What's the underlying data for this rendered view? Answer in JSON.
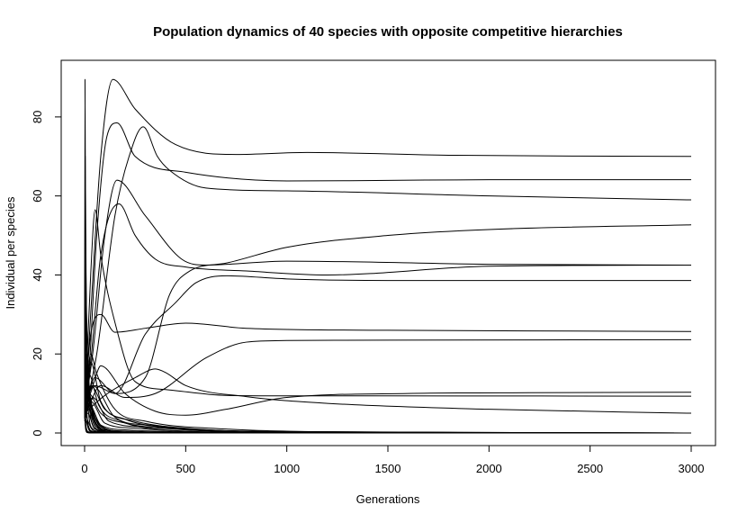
{
  "chart_data": {
    "type": "line",
    "title": "Population dynamics of 40 species with opposite competitive hierarchies",
    "xlabel": "Generations",
    "ylabel": "Individual per species",
    "xlim": [
      0,
      3000
    ],
    "ylim": [
      0,
      90
    ],
    "xticks": [
      0,
      500,
      1000,
      1500,
      2000,
      2500,
      3000
    ],
    "yticks": [
      0,
      20,
      40,
      60,
      80
    ],
    "grid": false,
    "line_color": "#000000",
    "series": [
      {
        "x": [
          0,
          30,
          80,
          140,
          250,
          450,
          750,
          1100,
          1800,
          3000
        ],
        "y": [
          4,
          30,
          70,
          89.5,
          82,
          73,
          70.5,
          71,
          70.3,
          70
        ]
      },
      {
        "x": [
          0,
          20,
          60,
          110,
          160,
          250,
          500,
          1000,
          2000,
          3000
        ],
        "y": [
          4,
          14,
          50,
          75,
          78.5,
          70,
          66,
          63.8,
          64.1,
          64.1
        ]
      },
      {
        "x": [
          0,
          60,
          150,
          220,
          290,
          360,
          420,
          600,
          1000,
          2000,
          3000
        ],
        "y": [
          5,
          20,
          55,
          70,
          77.5,
          70,
          66.5,
          62,
          61.3,
          60,
          59
        ]
      },
      {
        "x": [
          0,
          40,
          100,
          160,
          300,
          480,
          600,
          1000,
          2000,
          3000
        ],
        "y": [
          6,
          20,
          50,
          64,
          55,
          44,
          42.5,
          43.5,
          42.7,
          42.5
        ]
      },
      {
        "x": [
          0,
          30,
          80,
          170,
          250,
          350,
          500,
          800,
          1200,
          2000,
          3000
        ],
        "y": [
          5,
          18,
          45,
          58,
          50,
          44,
          42,
          41,
          40,
          42.2,
          42.5
        ]
      },
      {
        "x": [
          0,
          30,
          52,
          80,
          150,
          250,
          400,
          700,
          1000,
          1500,
          3000
        ],
        "y": [
          4,
          40,
          56.5,
          45,
          28,
          13,
          11,
          9.5,
          9.4,
          9.4,
          9.3
        ]
      },
      {
        "x": [
          0,
          50,
          150,
          300,
          420,
          520,
          700,
          1000,
          1500,
          2000,
          3000
        ],
        "y": [
          5,
          12,
          10,
          14,
          35,
          41,
          43,
          47,
          50,
          51.5,
          52.7
        ]
      },
      {
        "x": [
          0,
          50,
          150,
          300,
          450,
          550,
          700,
          1000,
          1500,
          3000
        ],
        "y": [
          5,
          14,
          10,
          25,
          33,
          38,
          39.8,
          39,
          38.6,
          38.6
        ]
      },
      {
        "x": [
          0,
          30,
          80,
          150,
          300,
          500,
          800,
          1500,
          3000
        ],
        "y": [
          6,
          25,
          30,
          25.5,
          26.5,
          27.8,
          26.5,
          26,
          25.7
        ]
      },
      {
        "x": [
          0,
          80,
          200,
          350,
          600,
          800,
          1000,
          1500,
          3000
        ],
        "y": [
          4,
          12,
          9,
          10,
          19,
          23,
          23.4,
          23.5,
          23.6
        ]
      },
      {
        "x": [
          0,
          100,
          250,
          350,
          400,
          500,
          800,
          1200,
          2000,
          3000
        ],
        "y": [
          5,
          9.5,
          14,
          16.2,
          15.3,
          12,
          9.2,
          7.5,
          6,
          5
        ]
      },
      {
        "x": [
          0,
          40,
          80,
          200,
          350,
          500,
          700,
          1000,
          1600,
          2200,
          3000
        ],
        "y": [
          8,
          12,
          17,
          10,
          5.5,
          4.5,
          6,
          9,
          10,
          10.2,
          10.3
        ]
      },
      {
        "x": [
          0,
          30,
          60,
          150,
          300,
          700,
          1200,
          3000
        ],
        "y": [
          4,
          20,
          15,
          6,
          3,
          1,
          0.3,
          0
        ]
      },
      {
        "x": [
          0,
          40,
          150,
          300,
          600,
          1000,
          3000
        ],
        "y": [
          5,
          12,
          4,
          2,
          0.8,
          0.2,
          0
        ]
      },
      {
        "x": [
          0,
          20,
          80,
          200,
          400,
          800,
          3000
        ],
        "y": [
          6,
          10,
          5,
          2.5,
          1.2,
          0.4,
          0
        ]
      },
      {
        "x": [
          0,
          40,
          120,
          300,
          600,
          1200,
          3000
        ],
        "y": [
          4,
          9,
          3,
          1.5,
          0.5,
          0.1,
          0
        ]
      },
      {
        "x": [
          0,
          30,
          100,
          250,
          500,
          900,
          3000
        ],
        "y": [
          5,
          8,
          2.5,
          1.2,
          0.4,
          0.1,
          0
        ]
      },
      {
        "x": [
          0,
          25,
          80,
          200,
          450,
          800,
          3000
        ],
        "y": [
          4,
          7,
          2,
          0.8,
          0.3,
          0.1,
          0
        ]
      },
      {
        "x": [
          0,
          20,
          60,
          150,
          400,
          700,
          3000
        ],
        "y": [
          5,
          6,
          1.5,
          0.6,
          0.2,
          0.05,
          0
        ]
      },
      {
        "x": [
          0,
          15,
          50,
          120,
          300,
          600,
          3000
        ],
        "y": [
          3,
          5,
          1,
          0.4,
          0.1,
          0,
          0
        ]
      },
      {
        "x": [
          0,
          10,
          40,
          100,
          250,
          500,
          3000
        ],
        "y": [
          6,
          4,
          0.8,
          0.3,
          0.1,
          0,
          0
        ]
      },
      {
        "x": [
          0,
          10,
          30,
          80,
          200,
          400,
          3000
        ],
        "y": [
          4,
          3,
          0.6,
          0.2,
          0.05,
          0,
          0
        ]
      },
      {
        "x": [
          0,
          8,
          25,
          60,
          150,
          300,
          3000
        ],
        "y": [
          5,
          3,
          0.5,
          0.1,
          0,
          0,
          0
        ]
      },
      {
        "x": [
          0,
          6,
          20,
          50,
          120,
          250,
          3000
        ],
        "y": [
          6,
          2,
          0.3,
          0.1,
          0,
          0,
          0
        ]
      },
      {
        "x": [
          0,
          5,
          15,
          40,
          100,
          200,
          3000
        ],
        "y": [
          4,
          1.5,
          0.2,
          0,
          0,
          0,
          0
        ]
      },
      {
        "x": [
          0,
          5,
          12,
          30,
          80,
          160,
          3000
        ],
        "y": [
          5,
          1,
          0.1,
          0,
          0,
          0,
          0
        ]
      },
      {
        "x": [
          0,
          30,
          100,
          250,
          500,
          1000,
          3000
        ],
        "y": [
          6,
          12,
          6,
          3,
          1.2,
          0.3,
          0
        ]
      },
      {
        "x": [
          0,
          30,
          80,
          200,
          400,
          900,
          3000
        ],
        "y": [
          5,
          18,
          8,
          3.5,
          1.5,
          0.4,
          0
        ]
      },
      {
        "x": [
          0,
          20,
          70,
          180,
          350,
          800,
          3000
        ],
        "y": [
          4,
          15,
          7,
          3,
          1,
          0.2,
          0
        ]
      },
      {
        "x": [
          0,
          2,
          4,
          6,
          15,
          30,
          60,
          3000
        ],
        "y": [
          5,
          89.5,
          60,
          20,
          3,
          0.5,
          0,
          0
        ]
      },
      {
        "x": [
          0,
          3,
          6,
          10,
          20,
          40,
          80,
          3000
        ],
        "y": [
          4,
          70,
          50,
          22,
          5,
          1,
          0.1,
          0
        ]
      },
      {
        "x": [
          0,
          3,
          8,
          15,
          30,
          60,
          120,
          3000
        ],
        "y": [
          6,
          55,
          35,
          15,
          4,
          0.8,
          0.1,
          0
        ]
      },
      {
        "x": [
          0,
          4,
          10,
          20,
          40,
          80,
          160,
          3000
        ],
        "y": [
          5,
          40,
          28,
          12,
          3,
          0.5,
          0,
          0
        ]
      },
      {
        "x": [
          0,
          5,
          12,
          25,
          50,
          100,
          200,
          3000
        ],
        "y": [
          4,
          30,
          22,
          10,
          2.5,
          0.4,
          0,
          0
        ]
      },
      {
        "x": [
          0,
          5,
          14,
          30,
          60,
          120,
          250,
          3000
        ],
        "y": [
          6,
          24,
          18,
          8,
          2,
          0.3,
          0,
          0
        ]
      },
      {
        "x": [
          0,
          6,
          16,
          35,
          70,
          140,
          300,
          3000
        ],
        "y": [
          5,
          20,
          14,
          6,
          1.5,
          0.2,
          0,
          0
        ]
      },
      {
        "x": [
          0,
          8,
          20,
          40,
          80,
          160,
          350,
          3000
        ],
        "y": [
          4,
          17,
          12,
          5,
          1.2,
          0.2,
          0,
          0
        ]
      },
      {
        "x": [
          0,
          10,
          25,
          50,
          100,
          200,
          400,
          3000
        ],
        "y": [
          6,
          15,
          10,
          4,
          1,
          0.1,
          0,
          0
        ]
      },
      {
        "x": [
          0,
          10,
          30,
          60,
          120,
          250,
          500,
          3000
        ],
        "y": [
          5,
          13,
          8,
          3,
          0.8,
          0.1,
          0,
          0
        ]
      },
      {
        "x": [
          0,
          12,
          35,
          70,
          140,
          300,
          600,
          3000
        ],
        "y": [
          4,
          11,
          6,
          2.5,
          0.6,
          0.1,
          0,
          0
        ]
      }
    ]
  }
}
